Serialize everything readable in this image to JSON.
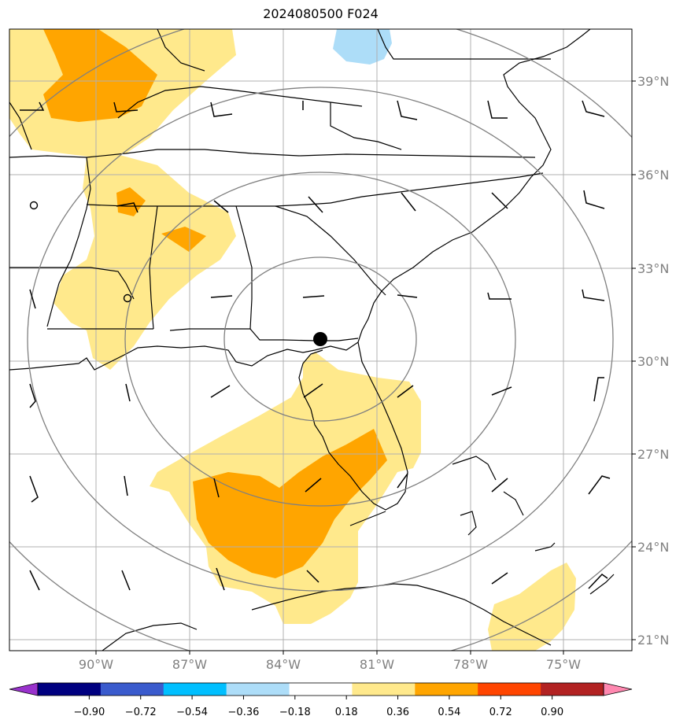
{
  "title": "2024080500 F024",
  "map": {
    "lon_labels": [
      "90°W",
      "87°W",
      "84°W",
      "81°W",
      "78°W",
      "75°W"
    ],
    "lat_labels": [
      "39°N",
      "36°N",
      "33°N",
      "30°N",
      "27°N",
      "24°N",
      "21°N"
    ],
    "colors": {
      "yellow": "#FFE98C",
      "orange": "#FFA500",
      "lightblue": "#ADDDF8",
      "grid": "#b0b0b0",
      "rings": "#808080",
      "coast": "#000000"
    }
  },
  "colorbar": {
    "labels": [
      "−0.90",
      "−0.72",
      "−0.54",
      "−0.36",
      "−0.18",
      "0.18",
      "0.36",
      "0.54",
      "0.72",
      "0.90"
    ],
    "under_color": "#9932CC",
    "over_color": "#FF88B0",
    "bins": [
      "#000080",
      "#3A5BCD",
      "#00BFFF",
      "#ADDDF8",
      "#FFFFFF",
      "#FFE98C",
      "#FFA500",
      "#FF4500",
      "#B22222"
    ]
  }
}
